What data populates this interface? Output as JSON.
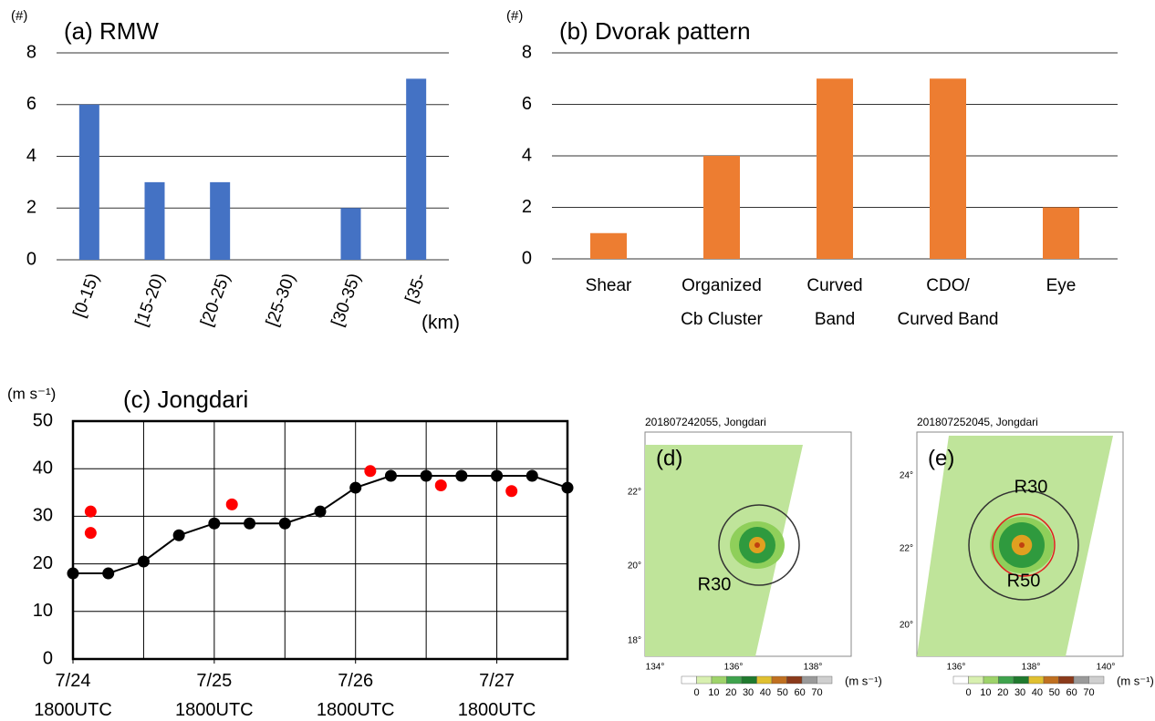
{
  "chart_data": [
    {
      "type": "bar",
      "title": "(a) RMW",
      "y_label": "(#)",
      "x_label": "(km)",
      "categories": [
        "[0-15)",
        "[15-20)",
        "[20-25)",
        "[25-30)",
        "[30-35)",
        "[35-"
      ],
      "values": [
        6,
        3,
        3,
        0,
        2,
        7
      ],
      "color": "#4472c4",
      "ylim": [
        0,
        8
      ],
      "yticks": [
        0,
        2,
        4,
        6,
        8
      ],
      "grid": true
    },
    {
      "type": "bar",
      "title": "(b) Dvorak pattern",
      "y_label": "(#)",
      "categories": [
        "Shear",
        "Organized\nCb Cluster",
        "Curved\nBand",
        "CDO/\nCurved Band",
        "Eye"
      ],
      "values": [
        1,
        4,
        7,
        7,
        2
      ],
      "color": "#ed7d31",
      "ylim": [
        0,
        8
      ],
      "yticks": [
        0,
        2,
        4,
        6,
        8
      ],
      "grid": true
    },
    {
      "type": "line",
      "title": "(c) Jongdari",
      "y_label": "(m s⁻¹)",
      "series": [
        {
          "type": "line",
          "color": "#000000",
          "x": [
            0,
            6,
            12,
            18,
            24,
            30,
            36,
            42,
            48,
            54,
            60,
            66,
            72,
            78,
            84
          ],
          "values": [
            18,
            18,
            20.5,
            26,
            28.5,
            28.5,
            28.5,
            31,
            36,
            38.5,
            38.5,
            38.5,
            38.5,
            38.5,
            36
          ]
        },
        {
          "type": "scatter",
          "color": "#ff0000",
          "x": [
            3,
            3,
            27,
            50.5,
            62.5,
            74.5
          ],
          "values": [
            31,
            26.5,
            32.5,
            39.5,
            36.5,
            35.3
          ]
        }
      ],
      "xlim": [
        0,
        84
      ],
      "xticks": [
        {
          "value": 0,
          "label": "7/24\n1800UTC"
        },
        {
          "value": 24,
          "label": "7/25\n1800UTC"
        },
        {
          "value": 48,
          "label": "7/26\n1800UTC"
        },
        {
          "value": 72,
          "label": "7/27\n1800UTC"
        }
      ],
      "xgrid": [
        0,
        12,
        24,
        36,
        48,
        60,
        72,
        84
      ],
      "ylim": [
        0,
        50
      ],
      "yticks": [
        0,
        10,
        20,
        30,
        40,
        50
      ],
      "grid": true
    }
  ],
  "maps": [
    {
      "label": "(d)",
      "header": "201807242055, Jongdari",
      "rings": [
        "R30"
      ],
      "lat_labels": [
        "22°",
        "20°",
        "18°"
      ],
      "lon_labels": [
        "134°",
        "136°",
        "138°"
      ],
      "colorbar_ticks": [
        0,
        10,
        20,
        30,
        40,
        50,
        60,
        70
      ],
      "unit": "(m s⁻¹)"
    },
    {
      "label": "(e)",
      "header": "201807252045, Jongdari",
      "rings": [
        "R30",
        "R50"
      ],
      "lat_labels": [
        "24°",
        "22°",
        "20°"
      ],
      "lon_labels": [
        "136°",
        "138°",
        "140°"
      ],
      "colorbar_ticks": [
        0,
        10,
        20,
        30,
        40,
        50,
        60,
        70
      ],
      "unit": "(m s⁻¹)"
    }
  ]
}
